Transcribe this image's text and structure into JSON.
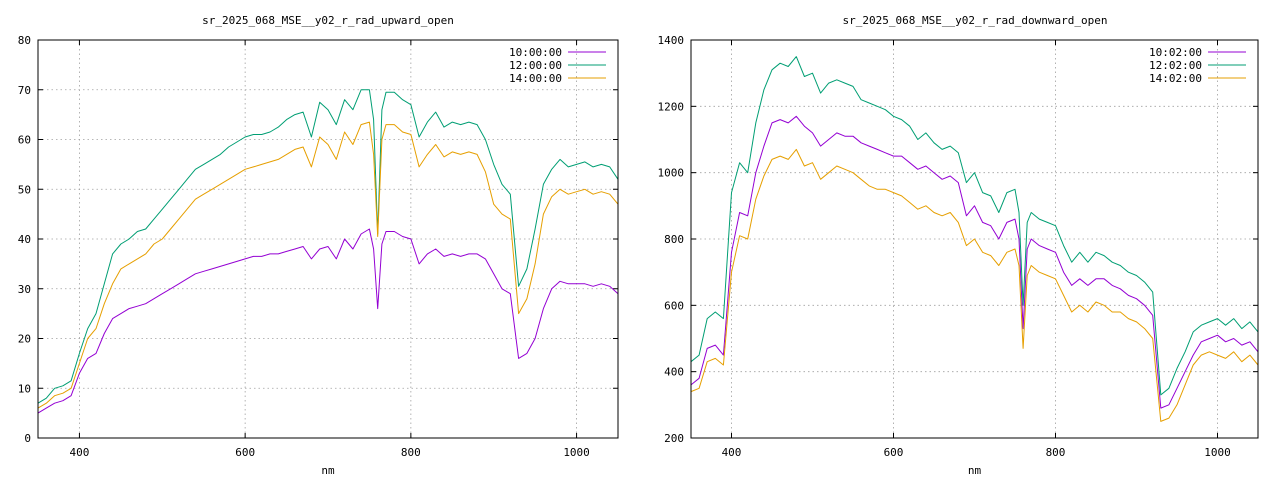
{
  "chart_data": [
    {
      "type": "line",
      "title": "sr_2025_068_MSE__y02_r_rad_upward_open",
      "xlabel": "nm",
      "ylabel": "",
      "xlim": [
        350,
        1050
      ],
      "ylim": [
        0,
        80
      ],
      "xticks": [
        400,
        600,
        800,
        1000
      ],
      "yticks": [
        0,
        10,
        20,
        30,
        40,
        50,
        60,
        70,
        80
      ],
      "grid": true,
      "legend_position": "top-right",
      "x": [
        350,
        360,
        370,
        380,
        390,
        400,
        410,
        420,
        430,
        440,
        450,
        460,
        470,
        480,
        490,
        500,
        510,
        520,
        530,
        540,
        550,
        560,
        570,
        580,
        590,
        600,
        610,
        620,
        630,
        640,
        650,
        660,
        670,
        680,
        690,
        700,
        710,
        720,
        730,
        740,
        750,
        755,
        760,
        765,
        770,
        780,
        790,
        800,
        810,
        820,
        830,
        840,
        850,
        860,
        870,
        880,
        890,
        900,
        910,
        920,
        930,
        940,
        950,
        960,
        970,
        980,
        990,
        1000,
        1010,
        1020,
        1030,
        1040,
        1050
      ],
      "series": [
        {
          "name": "10:00:00",
          "color": "#9400d3",
          "values": [
            5,
            6,
            7,
            7.5,
            8.5,
            13,
            16,
            17,
            21,
            24,
            25,
            26,
            26.5,
            27,
            28,
            29,
            30,
            31,
            32,
            33,
            33.5,
            34,
            34.5,
            35,
            35.5,
            36,
            36.5,
            36.5,
            37,
            37,
            37.5,
            38,
            38.5,
            36,
            38,
            38.5,
            36,
            40,
            38,
            41,
            42,
            38,
            26,
            39,
            41.5,
            41.5,
            40.5,
            40,
            35,
            37,
            38,
            36.5,
            37,
            36.5,
            37,
            37,
            36,
            33,
            30,
            29,
            16,
            17,
            20,
            26,
            30,
            31.5,
            31,
            31,
            31,
            30.5,
            31,
            30.5,
            29
          ]
        },
        {
          "name": "12:00:00",
          "color": "#009e73",
          "values": [
            7,
            8,
            10,
            10.5,
            11.5,
            17,
            22,
            25,
            31,
            37,
            39,
            40,
            41.5,
            42,
            44,
            46,
            48,
            50,
            52,
            54,
            55,
            56,
            57,
            58.5,
            59.5,
            60.5,
            61,
            61,
            61.5,
            62.5,
            64,
            65,
            65.5,
            60.5,
            67.5,
            66,
            63,
            68,
            66,
            70,
            70,
            64,
            41,
            66,
            69.5,
            69.5,
            68,
            67,
            60.5,
            63.5,
            65.5,
            62.5,
            63.5,
            63,
            63.5,
            63,
            60,
            55,
            51,
            49,
            30.5,
            34,
            42,
            51,
            54,
            56,
            54.5,
            55,
            55.5,
            54.5,
            55,
            54.5,
            52
          ]
        },
        {
          "name": "14:00:00",
          "color": "#e69f00",
          "values": [
            6,
            7,
            8.5,
            9,
            10,
            15,
            20,
            22,
            27,
            31,
            34,
            35,
            36,
            37,
            39,
            40,
            42,
            44,
            46,
            48,
            49,
            50,
            51,
            52,
            53,
            54,
            54.5,
            55,
            55.5,
            56,
            57,
            58,
            58.5,
            54.5,
            60.5,
            59,
            56,
            61.5,
            59,
            63,
            63.5,
            57,
            40.5,
            60,
            63,
            63,
            61.5,
            61,
            54.5,
            57,
            59,
            56.5,
            57.5,
            57,
            57.5,
            57,
            53.5,
            47,
            45,
            44,
            25,
            28,
            35,
            45,
            48.5,
            50,
            49,
            49.5,
            50,
            49,
            49.5,
            49,
            47
          ]
        }
      ]
    },
    {
      "type": "line",
      "title": "sr_2025_068_MSE__y02_r_rad_downward_open",
      "xlabel": "nm",
      "ylabel": "",
      "xlim": [
        350,
        1050
      ],
      "ylim": [
        200,
        1400
      ],
      "xticks": [
        400,
        600,
        800,
        1000
      ],
      "yticks": [
        200,
        400,
        600,
        800,
        1000,
        1200,
        1400
      ],
      "grid": true,
      "legend_position": "top-right",
      "x": [
        350,
        360,
        370,
        380,
        390,
        400,
        410,
        420,
        430,
        440,
        450,
        460,
        470,
        480,
        490,
        500,
        510,
        520,
        530,
        540,
        550,
        560,
        570,
        580,
        590,
        600,
        610,
        620,
        630,
        640,
        650,
        660,
        670,
        680,
        690,
        700,
        710,
        720,
        730,
        740,
        750,
        755,
        760,
        765,
        770,
        780,
        790,
        800,
        810,
        820,
        830,
        840,
        850,
        860,
        870,
        880,
        890,
        900,
        910,
        920,
        930,
        940,
        950,
        960,
        970,
        980,
        990,
        1000,
        1010,
        1020,
        1030,
        1040,
        1050
      ],
      "series": [
        {
          "name": "10:02:00",
          "color": "#9400d3",
          "values": [
            360,
            380,
            470,
            480,
            450,
            760,
            880,
            870,
            1000,
            1080,
            1150,
            1160,
            1150,
            1170,
            1140,
            1120,
            1080,
            1100,
            1120,
            1110,
            1110,
            1090,
            1080,
            1070,
            1060,
            1050,
            1050,
            1030,
            1010,
            1020,
            1000,
            980,
            990,
            970,
            870,
            900,
            850,
            840,
            800,
            850,
            860,
            800,
            530,
            770,
            800,
            780,
            770,
            760,
            700,
            660,
            680,
            660,
            680,
            680,
            660,
            650,
            630,
            620,
            600,
            570,
            290,
            300,
            350,
            400,
            450,
            490,
            500,
            510,
            490,
            500,
            480,
            490,
            460
          ]
        },
        {
          "name": "12:02:00",
          "color": "#009e73",
          "values": [
            430,
            450,
            560,
            580,
            560,
            940,
            1030,
            1000,
            1150,
            1250,
            1310,
            1330,
            1320,
            1350,
            1290,
            1300,
            1240,
            1270,
            1280,
            1270,
            1260,
            1220,
            1210,
            1200,
            1190,
            1170,
            1160,
            1140,
            1100,
            1120,
            1090,
            1070,
            1080,
            1060,
            970,
            1000,
            940,
            930,
            880,
            940,
            950,
            880,
            600,
            850,
            880,
            860,
            850,
            840,
            780,
            730,
            760,
            730,
            760,
            750,
            730,
            720,
            700,
            690,
            670,
            640,
            330,
            350,
            410,
            460,
            520,
            540,
            550,
            560,
            540,
            560,
            530,
            550,
            520
          ]
        },
        {
          "name": "14:02:00",
          "color": "#e69f00",
          "values": [
            340,
            350,
            430,
            440,
            420,
            700,
            810,
            800,
            920,
            990,
            1040,
            1050,
            1040,
            1070,
            1020,
            1030,
            980,
            1000,
            1020,
            1010,
            1000,
            980,
            960,
            950,
            950,
            940,
            930,
            910,
            890,
            900,
            880,
            870,
            880,
            850,
            780,
            800,
            760,
            750,
            720,
            760,
            770,
            720,
            470,
            690,
            720,
            700,
            690,
            680,
            630,
            580,
            600,
            580,
            610,
            600,
            580,
            580,
            560,
            550,
            530,
            500,
            250,
            260,
            300,
            360,
            420,
            450,
            460,
            450,
            440,
            460,
            430,
            450,
            420
          ]
        }
      ]
    }
  ]
}
